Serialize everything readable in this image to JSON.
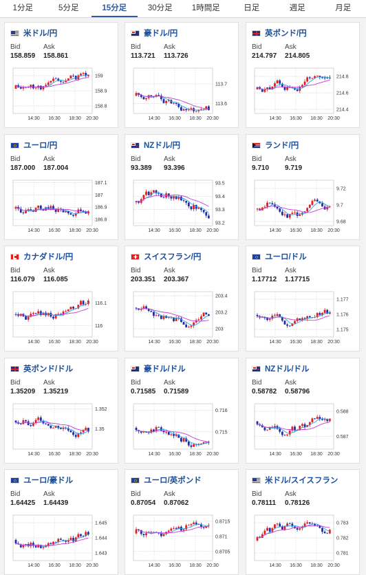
{
  "tabs": [
    {
      "label": "1分足",
      "active": false
    },
    {
      "label": "5分足",
      "active": false
    },
    {
      "label": "15分足",
      "active": true
    },
    {
      "label": "30分足",
      "active": false
    },
    {
      "label": "1時間足",
      "active": false
    },
    {
      "label": "日足",
      "active": false
    },
    {
      "label": "週足",
      "active": false
    },
    {
      "label": "月足",
      "active": false
    }
  ],
  "labels": {
    "bid": "Bid",
    "ask": "Ask"
  },
  "colors": {
    "up": "#e02020",
    "down": "#1d2fa8",
    "ma_short": "#29a3e8",
    "ma_long": "#c23ad6",
    "pair": "#1a4f9c"
  },
  "time_labels": [
    "14:30",
    "16:30",
    "18:30",
    "20:30"
  ],
  "cards": [
    {
      "pair": "米ドル/円",
      "flag": "us",
      "bid": "158.859",
      "ask": "158.861",
      "ticks": [
        "159",
        "158.9",
        "158.8"
      ],
      "hi": 159.05,
      "lo": 158.75
    },
    {
      "pair": "豪ドル/円",
      "flag": "au",
      "bid": "113.721",
      "ask": "113.726",
      "ticks": [
        "113.7",
        "113.6"
      ],
      "hi": 113.78,
      "lo": 113.55
    },
    {
      "pair": "英ポンド/円",
      "flag": "gb",
      "bid": "214.797",
      "ask": "214.805",
      "ticks": [
        "214.8",
        "214.6",
        "214.4"
      ],
      "hi": 214.9,
      "lo": 214.35
    },
    {
      "pair": "ユーロ/円",
      "flag": "eu",
      "bid": "187.000",
      "ask": "187.004",
      "ticks": [
        "187.1",
        "187",
        "186.9",
        "186.8"
      ],
      "hi": 187.12,
      "lo": 186.75
    },
    {
      "pair": "NZドル/円",
      "flag": "nz",
      "bid": "93.389",
      "ask": "93.396",
      "ticks": [
        "93.5",
        "93.4",
        "93.3",
        "93.2"
      ],
      "hi": 93.52,
      "lo": 93.18
    },
    {
      "pair": "ランド/円",
      "flag": "za",
      "bid": "9.710",
      "ask": "9.719",
      "ticks": [
        "9.72",
        "9.7",
        "9.68"
      ],
      "hi": 9.73,
      "lo": 9.675
    },
    {
      "pair": "カナダドル/円",
      "flag": "ca",
      "bid": "116.079",
      "ask": "116.085",
      "ticks": [
        "116.1",
        "116"
      ],
      "hi": 116.15,
      "lo": 115.95
    },
    {
      "pair": "スイスフラン/円",
      "flag": "ch",
      "bid": "203.351",
      "ask": "203.367",
      "ticks": [
        "203.4",
        "203.2",
        "203"
      ],
      "hi": 203.45,
      "lo": 202.9
    },
    {
      "pair": "ユーロ/ドル",
      "flag": "eu",
      "bid": "1.17712",
      "ask": "1.17715",
      "ticks": [
        "1.177",
        "1.176",
        "1.175"
      ],
      "hi": 1.1775,
      "lo": 1.1745
    },
    {
      "pair": "英ポンド/ドル",
      "flag": "gb",
      "bid": "1.35209",
      "ask": "1.35219",
      "ticks": [
        "1.352",
        "1.35"
      ],
      "hi": 1.3525,
      "lo": 1.348
    },
    {
      "pair": "豪ドル/ドル",
      "flag": "au",
      "bid": "0.71585",
      "ask": "0.71589",
      "ticks": [
        "0.716",
        "0.715"
      ],
      "hi": 0.7163,
      "lo": 0.7142
    },
    {
      "pair": "NZドル/ドル",
      "flag": "nz",
      "bid": "0.58782",
      "ask": "0.58796",
      "ticks": [
        "0.588",
        "0.587"
      ],
      "hi": 0.5883,
      "lo": 0.5865
    },
    {
      "pair": "ユーロ/豪ドル",
      "flag": "eu",
      "bid": "1.64425",
      "ask": "1.64439",
      "ticks": [
        "1.645",
        "1.644",
        "1.643"
      ],
      "hi": 1.6455,
      "lo": 1.6425
    },
    {
      "pair": "ユーロ/英ポンド",
      "flag": "eu",
      "bid": "0.87054",
      "ask": "0.87062",
      "ticks": [
        "0.8715",
        "0.871",
        "0.8705"
      ],
      "hi": 0.8717,
      "lo": 0.8702
    },
    {
      "pair": "米ドル/スイスフラン",
      "flag": "us",
      "bid": "0.78111",
      "ask": "0.78126",
      "ticks": [
        "0.783",
        "0.782",
        "0.781"
      ],
      "hi": 0.7835,
      "lo": 0.7805
    }
  ]
}
